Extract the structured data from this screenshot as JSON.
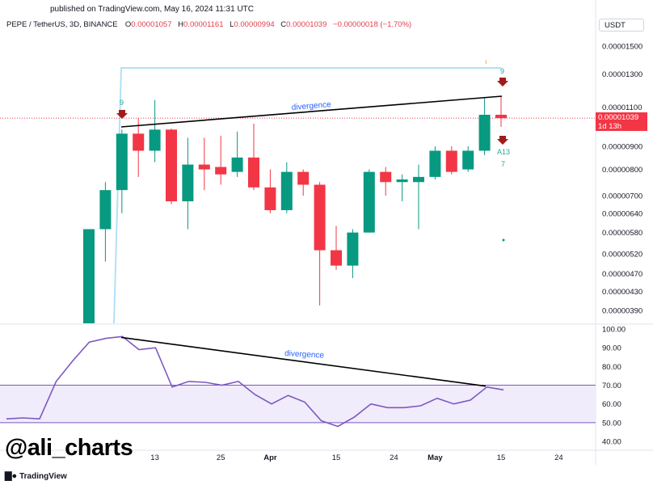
{
  "header": {
    "published": "published on TradingView.com, May 16, 2024 11:31 UTC",
    "symbol": "PEPE / TetherUS, 3D, BINANCE",
    "ohlc": [
      {
        "label": "O",
        "value": "0.00001057"
      },
      {
        "label": "H",
        "value": "0.00001161"
      },
      {
        "label": "L",
        "value": "0.00000994"
      },
      {
        "label": "C",
        "value": "0.00001039"
      }
    ],
    "change": "−0.00000018 (−1.70%)",
    "currency": "USDT"
  },
  "last_price": {
    "value": "0.00001039",
    "countdown": "1d 13h"
  },
  "watermark": "@ali_charts",
  "brand": "TradingView",
  "colors": {
    "up": "#089981",
    "down": "#f23645",
    "rsi": "#7e57c2",
    "rsi_band": "#f0ecfb",
    "trendline": "#000000",
    "divergence_text": "#2962ff",
    "highlight": "#b3e0f5"
  },
  "chart_data": [
    {
      "type": "candlestick",
      "title": "PEPE / TetherUS, 3D, BINANCE",
      "x_ticks": [
        "13",
        "25",
        "Apr",
        "15",
        "24",
        "May",
        "15",
        "24"
      ],
      "y_scale": "log",
      "ylim": [
        3.55e-06,
        1.62e-05
      ],
      "y_ticks": [
        "0.00001500",
        "0.00001300",
        "0.00001100",
        "0.00000900",
        "0.00000800",
        "0.00000700",
        "0.00000640",
        "0.00000580",
        "0.00000520",
        "0.00000470",
        "0.00000430",
        "0.00000390"
      ],
      "candles": [
        {
          "o": 3.3e-06,
          "h": 5.9e-06,
          "l": 3e-06,
          "c": 5.9e-06
        },
        {
          "o": 5.9e-06,
          "h": 7.5e-06,
          "l": 5e-06,
          "c": 7.2e-06
        },
        {
          "o": 7.2e-06,
          "h": 9.8e-06,
          "l": 6.4e-06,
          "c": 9.6e-06
        },
        {
          "o": 9.6e-06,
          "h": 1.04e-05,
          "l": 7.7e-06,
          "c": 8.8e-06
        },
        {
          "o": 8.8e-06,
          "h": 1.14e-05,
          "l": 8.3e-06,
          "c": 9.8e-06
        },
        {
          "o": 9.8e-06,
          "h": 9.85e-06,
          "l": 6.7e-06,
          "c": 6.8e-06
        },
        {
          "o": 6.8e-06,
          "h": 9.4e-06,
          "l": 5.9e-06,
          "c": 8.2e-06
        },
        {
          "o": 8.2e-06,
          "h": 9.4e-06,
          "l": 7.2e-06,
          "c": 8e-06
        },
        {
          "o": 8.1e-06,
          "h": 9.5e-06,
          "l": 7.4e-06,
          "c": 7.8e-06
        },
        {
          "o": 7.9e-06,
          "h": 9.7e-06,
          "l": 7.7e-06,
          "c": 8.5e-06
        },
        {
          "o": 8.5e-06,
          "h": 1.01e-05,
          "l": 7.2e-06,
          "c": 7.3e-06
        },
        {
          "o": 7.3e-06,
          "h": 8e-06,
          "l": 6.4e-06,
          "c": 6.5e-06
        },
        {
          "o": 6.5e-06,
          "h": 8.3e-06,
          "l": 6.4e-06,
          "c": 7.9e-06
        },
        {
          "o": 7.9e-06,
          "h": 8e-06,
          "l": 7e-06,
          "c": 7.4e-06
        },
        {
          "o": 7.4e-06,
          "h": 7.5e-06,
          "l": 4e-06,
          "c": 5.3e-06
        },
        {
          "o": 5.3e-06,
          "h": 6e-06,
          "l": 4.8e-06,
          "c": 4.9e-06
        },
        {
          "o": 4.9e-06,
          "h": 5.9e-06,
          "l": 4.6e-06,
          "c": 5.8e-06
        },
        {
          "o": 5.8e-06,
          "h": 8e-06,
          "l": 5.8e-06,
          "c": 7.9e-06
        },
        {
          "o": 7.9e-06,
          "h": 8.1e-06,
          "l": 7e-06,
          "c": 7.5e-06
        },
        {
          "o": 7.5e-06,
          "h": 7.8e-06,
          "l": 6.8e-06,
          "c": 7.6e-06
        },
        {
          "o": 7.5e-06,
          "h": 8.2e-06,
          "l": 5.9e-06,
          "c": 7.7e-06
        },
        {
          "o": 7.7e-06,
          "h": 9e-06,
          "l": 7.6e-06,
          "c": 8.8e-06
        },
        {
          "o": 8.8e-06,
          "h": 9e-06,
          "l": 7.8e-06,
          "c": 7.9e-06
        },
        {
          "o": 8e-06,
          "h": 9e-06,
          "l": 7.9e-06,
          "c": 8.8e-06
        },
        {
          "o": 8.8e-06,
          "h": 1.15e-05,
          "l": 8.6e-06,
          "c": 1.057e-05
        },
        {
          "o": 1.057e-05,
          "h": 1.161e-05,
          "l": 9.94e-06,
          "c": 1.039e-05
        }
      ],
      "annotations": [
        {
          "text": "divergence",
          "kind": "trendline-label"
        },
        {
          "text": "9",
          "kind": "td-count"
        },
        {
          "text": "9",
          "kind": "td-count"
        },
        {
          "text": "A13",
          "kind": "td-count"
        },
        {
          "text": "7",
          "kind": "td-count"
        }
      ]
    },
    {
      "type": "line",
      "title": "RSI",
      "ylim": [
        35,
        100
      ],
      "y_ticks": [
        "100.00",
        "90.00",
        "80.00",
        "70.00",
        "60.00",
        "50.00",
        "40.00"
      ],
      "bands": [
        50,
        70
      ],
      "values": [
        52,
        52.5,
        52,
        72,
        83,
        93,
        95,
        96,
        89,
        90,
        69,
        72,
        71.5,
        70,
        72,
        65,
        60,
        64.5,
        61,
        51,
        48,
        53,
        60,
        58,
        58,
        59,
        63,
        60,
        62,
        69,
        67.5
      ],
      "annotations": [
        {
          "text": "divergence",
          "kind": "trendline-label"
        }
      ]
    }
  ]
}
